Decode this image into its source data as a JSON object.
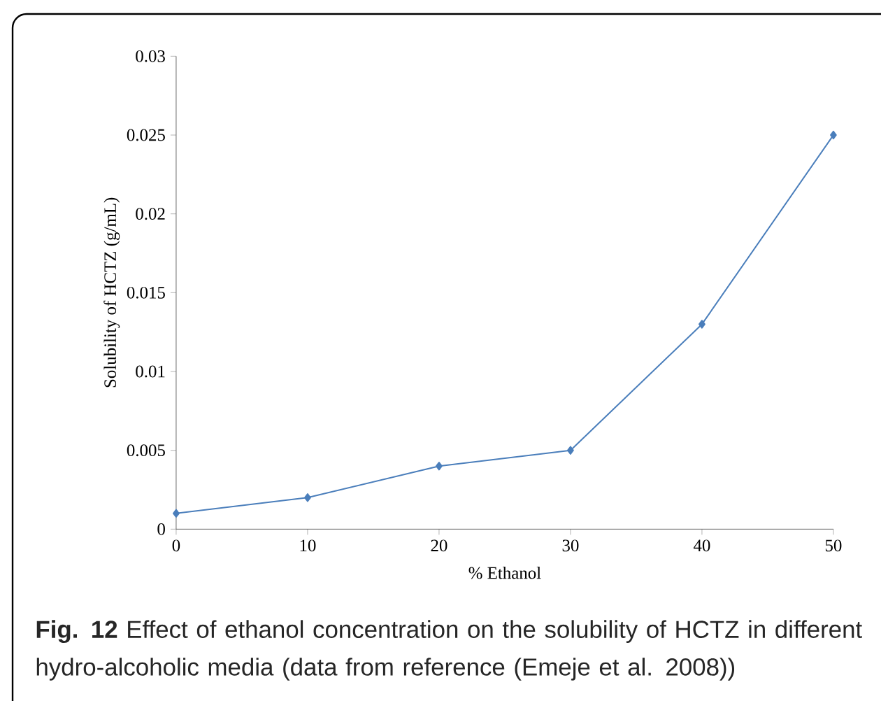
{
  "chart_data": {
    "type": "line",
    "xlabel": "% Ethanol",
    "ylabel": "Solubility of HCTZ (g/mL)",
    "x": [
      0,
      10,
      20,
      30,
      40,
      50
    ],
    "series": [
      {
        "color": "#4a7ebb",
        "values": [
          0.001,
          0.002,
          0.004,
          0.005,
          0.013,
          0.025
        ]
      }
    ],
    "xlim": [
      0,
      50
    ],
    "ylim": [
      0,
      0.03
    ],
    "xticks": [
      0,
      10,
      20,
      30,
      40,
      50
    ],
    "yticks": [
      0,
      0.005,
      0.01,
      0.015,
      0.02,
      0.025,
      0.03
    ],
    "marker": "diamond",
    "line_style": "solid",
    "grid": false,
    "annotations": [
      "**Fig. 12** Effect of ethanol concentration on the solubility of HCTZ in different hydro-alcoholic media (data from reference (Emeje et al. 2008))"
    ]
  }
}
